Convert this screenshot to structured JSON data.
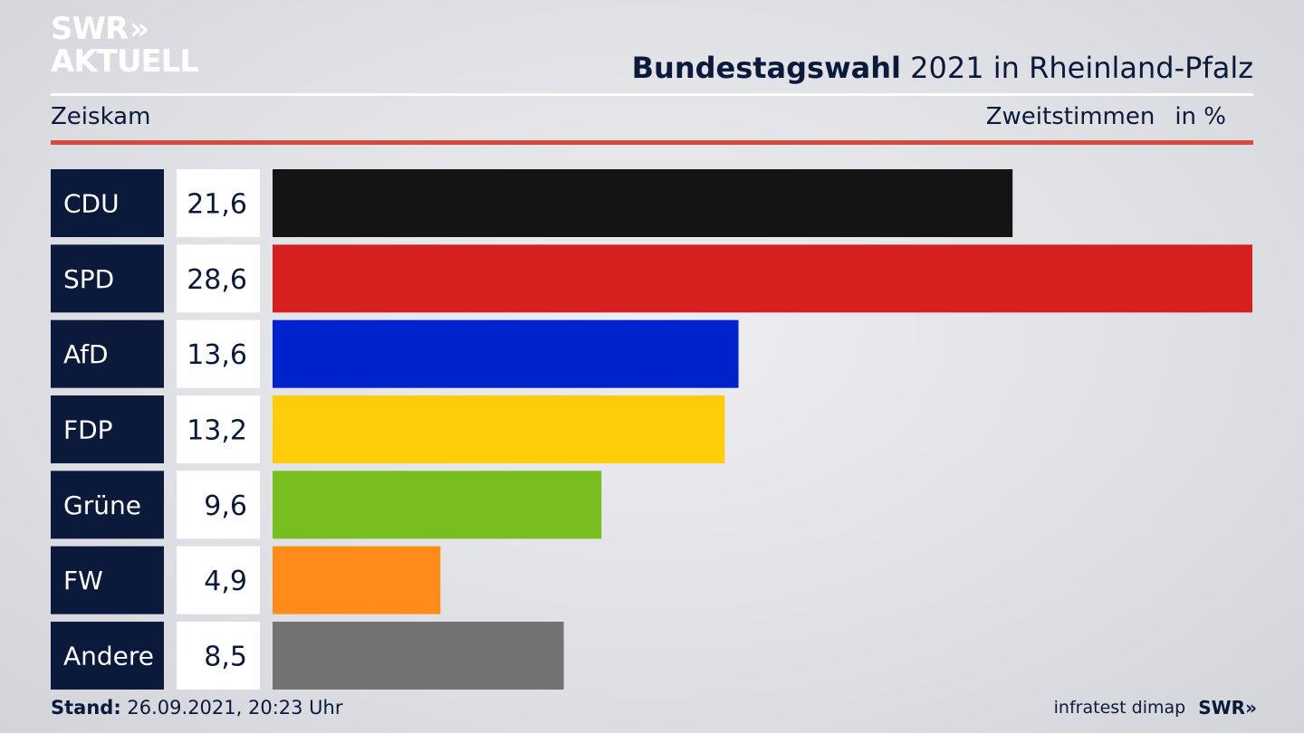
{
  "header": {
    "logo_line1": "SWR",
    "logo_line2": "AKTUELL",
    "logo_chevrons": "»",
    "title_bold": "Bundestagswahl",
    "title_rest": " 2021 in Rheinland-Pfalz",
    "location": "Zeiskam",
    "measure": "Zweitstimmen",
    "unit": "in %"
  },
  "footer": {
    "stand_label": "Stand:",
    "stand_value": " 26.09.2021, 20:23 Uhr",
    "source": "infratest dimap",
    "broadcaster": "SWR",
    "broadcaster_chevrons": "»"
  },
  "chart_data": {
    "type": "bar",
    "orientation": "horizontal",
    "categories": [
      "CDU",
      "SPD",
      "AfD",
      "FDP",
      "Grüne",
      "FW",
      "Andere"
    ],
    "values": [
      21.6,
      28.6,
      13.6,
      13.2,
      9.6,
      4.9,
      8.5
    ],
    "value_labels": [
      "21,6",
      "28,6",
      "13,6",
      "13,2",
      "9,6",
      "4,9",
      "8,5"
    ],
    "colors": [
      "#141414",
      "#d62020",
      "#0022cc",
      "#ffcc0a",
      "#78be1e",
      "#ff8c19",
      "#737373"
    ],
    "xlim": [
      0,
      28.6
    ],
    "grid": false,
    "legend": "none"
  }
}
